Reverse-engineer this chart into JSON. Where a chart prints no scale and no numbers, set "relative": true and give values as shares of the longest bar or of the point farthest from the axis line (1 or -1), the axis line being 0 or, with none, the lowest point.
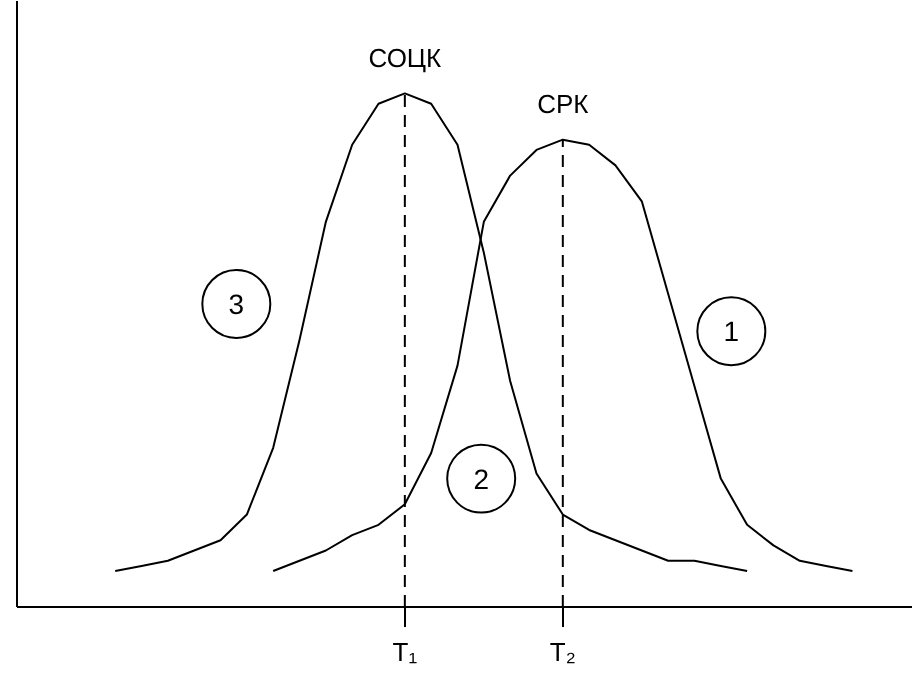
{
  "chart_data": {
    "type": "line",
    "relative": true,
    "line_style": "solid",
    "marker": "none",
    "grid": false,
    "legend": false,
    "categories": [
      null,
      null,
      null,
      null,
      null,
      null,
      null,
      null,
      null,
      null,
      null,
      null,
      "T₁",
      null,
      null,
      null,
      null,
      null,
      "T₂",
      null,
      null,
      null,
      null,
      null,
      null,
      null,
      null,
      null,
      null,
      null,
      null
    ],
    "series": [
      {
        "name": "3",
        "color": "#000000",
        "values": [
          null,
          0.07,
          0.08,
          0.09,
          0.11,
          0.13,
          0.18,
          0.31,
          0.52,
          0.75,
          0.9,
          0.98,
          1,
          0.98,
          0.9,
          0.69,
          0.44,
          0.26,
          0.18,
          0.15,
          0.13,
          0.11,
          0.09,
          0.09,
          0.08,
          0.07,
          null,
          null,
          null,
          null,
          null
        ]
      },
      {
        "name": "1",
        "color": "#000000",
        "values": [
          null,
          null,
          null,
          null,
          null,
          null,
          null,
          0.07,
          0.09,
          0.11,
          0.14,
          0.16,
          0.2,
          0.3,
          0.47,
          0.75,
          0.84,
          0.89,
          0.91,
          0.9,
          0.86,
          0.79,
          0.61,
          0.43,
          0.25,
          0.16,
          0.12,
          0.09,
          0.08,
          0.07,
          null
        ]
      }
    ],
    "ref_lines": [
      {
        "axis": "x",
        "value": "T₁",
        "label": "СОЦК",
        "line_style": "dashed",
        "color": "#000000"
      },
      {
        "axis": "x",
        "value": "T₂",
        "label": "СРК",
        "line_style": "dashed",
        "color": "#000000"
      }
    ],
    "annotations": [
      "2"
    ]
  }
}
